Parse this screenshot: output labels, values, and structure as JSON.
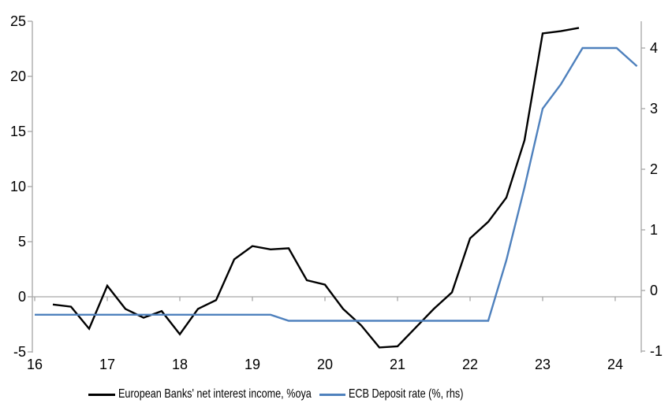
{
  "chart_data": {
    "type": "line",
    "title": "",
    "legend_position": "bottom",
    "grid": false,
    "x_axis": {
      "ticks": [
        16,
        17,
        18,
        19,
        20,
        21,
        22,
        23,
        24
      ],
      "range": [
        16,
        24.36
      ],
      "label": ""
    },
    "left_axis": {
      "ticks": [
        25,
        20,
        15,
        10,
        5,
        0,
        "-5"
      ],
      "tick_values": [
        25,
        20,
        15,
        10,
        5,
        0,
        -5
      ],
      "range": [
        -5,
        25
      ],
      "label": ""
    },
    "right_axis": {
      "ticks": [
        4,
        3,
        2,
        1,
        0,
        "-1"
      ],
      "tick_values": [
        4,
        3,
        2,
        1,
        0,
        -1
      ],
      "range": [
        -1,
        4.44
      ],
      "label": ""
    },
    "zero_line": true,
    "colors": {
      "axis": "#a6a6a6",
      "text": "#000000",
      "series_black": "#000000",
      "series_blue": "#4f81bd"
    },
    "series": [
      {
        "name": "European Banks' net interest income, %oya",
        "axis": "left",
        "color": "#000000",
        "points": [
          [
            16.25,
            -0.7
          ],
          [
            16.5,
            -0.9
          ],
          [
            16.75,
            -2.9
          ],
          [
            17.0,
            1.0
          ],
          [
            17.25,
            -1.1
          ],
          [
            17.5,
            -1.9
          ],
          [
            17.75,
            -1.3
          ],
          [
            18.0,
            -3.4
          ],
          [
            18.25,
            -1.1
          ],
          [
            18.5,
            -0.3
          ],
          [
            18.75,
            3.4
          ],
          [
            19.0,
            4.6
          ],
          [
            19.25,
            4.3
          ],
          [
            19.5,
            4.4
          ],
          [
            19.75,
            1.5
          ],
          [
            20.0,
            1.1
          ],
          [
            20.25,
            -1.1
          ],
          [
            20.5,
            -2.6
          ],
          [
            20.75,
            -4.6
          ],
          [
            21.0,
            -4.5
          ],
          [
            21.25,
            -2.8
          ],
          [
            21.5,
            -1.1
          ],
          [
            21.75,
            0.4
          ],
          [
            22.0,
            5.3
          ],
          [
            22.25,
            6.8
          ],
          [
            22.5,
            9.0
          ],
          [
            22.75,
            14.2
          ],
          [
            23.0,
            23.9
          ],
          [
            23.25,
            24.1
          ],
          [
            23.5,
            24.4
          ]
        ]
      },
      {
        "name": "ECB Deposit rate (%, rhs)",
        "axis": "right",
        "color": "#4f81bd",
        "points": [
          [
            16.0,
            -0.4
          ],
          [
            19.25,
            -0.4
          ],
          [
            19.5,
            -0.5
          ],
          [
            22.25,
            -0.5
          ],
          [
            22.5,
            0.5
          ],
          [
            22.75,
            1.7
          ],
          [
            23.0,
            3.0
          ],
          [
            23.25,
            3.4
          ],
          [
            23.55,
            4.0
          ],
          [
            24.02,
            4.0
          ],
          [
            24.3,
            3.7
          ]
        ]
      }
    ]
  }
}
